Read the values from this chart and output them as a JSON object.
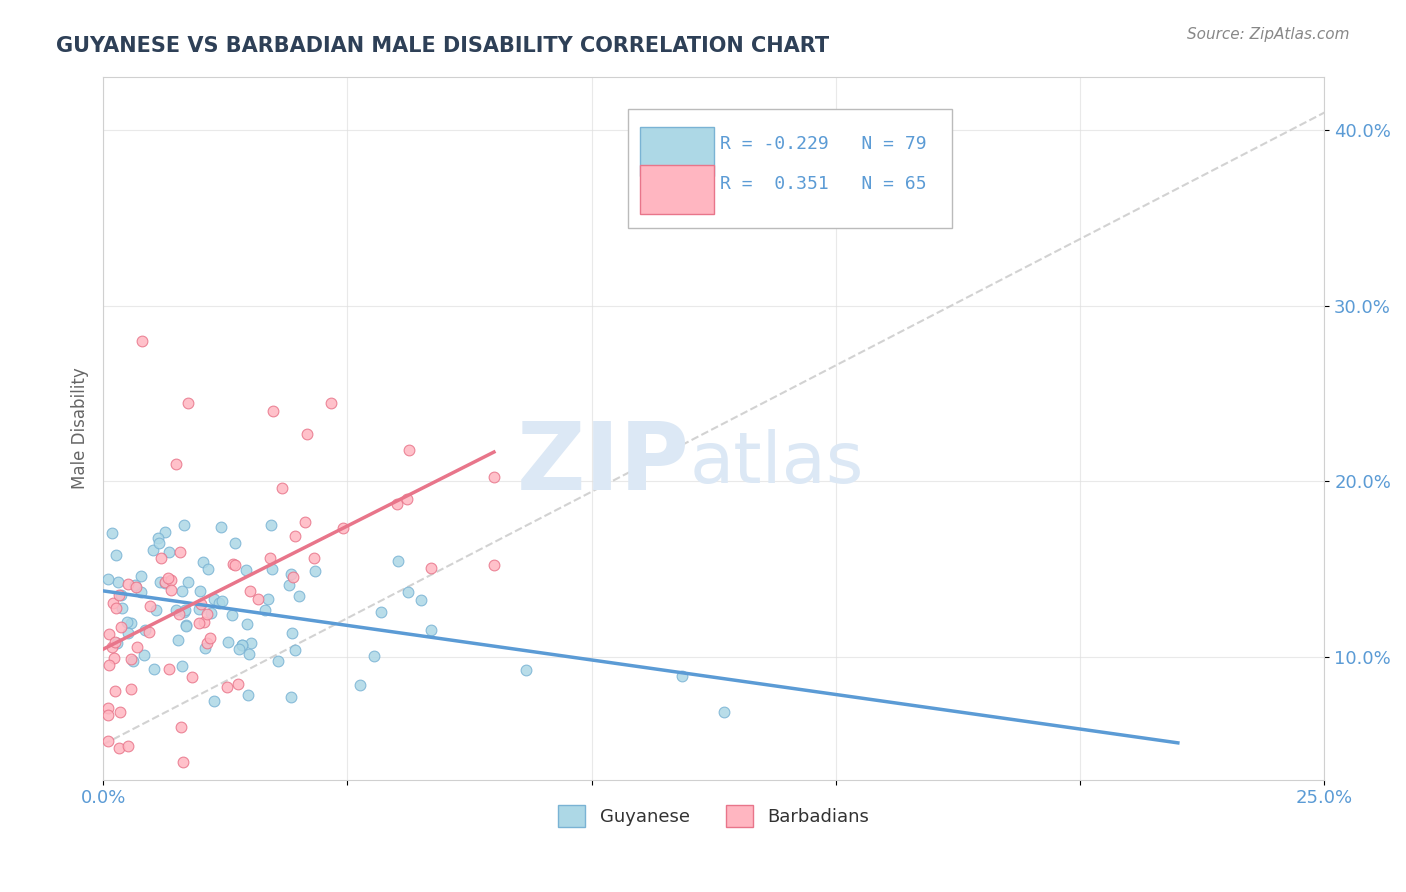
{
  "title": "GUYANESE VS BARBADIAN MALE DISABILITY CORRELATION CHART",
  "source": "Source: ZipAtlas.com",
  "ylabel": "Male Disability",
  "xlim": [
    0.0,
    0.25
  ],
  "ylim": [
    0.03,
    0.43
  ],
  "xticks": [
    0.0,
    0.05,
    0.1,
    0.15,
    0.2,
    0.25
  ],
  "yticks": [
    0.1,
    0.2,
    0.3,
    0.4
  ],
  "ytick_labels": [
    "10.0%",
    "20.0%",
    "30.0%",
    "40.0%"
  ],
  "xtick_labels": [
    "0.0%",
    "",
    "",
    "",
    "",
    "25.0%"
  ],
  "title_color": "#2E4057",
  "axis_color": "#5B9BD5",
  "guyanese_color": "#ADD8E6",
  "guyanese_edge": "#7AB3D4",
  "barbadian_color": "#FFB6C1",
  "barbadian_edge": "#E8758A",
  "trend_guyanese_color": "#5B9BD5",
  "trend_barbadian_color": "#E8758A",
  "ref_line_color": "#C0C0C0",
  "guyanese_R": -0.229,
  "guyanese_N": 79,
  "barbadian_R": 0.351,
  "barbadian_N": 65,
  "watermark_color": "#DCE8F5"
}
